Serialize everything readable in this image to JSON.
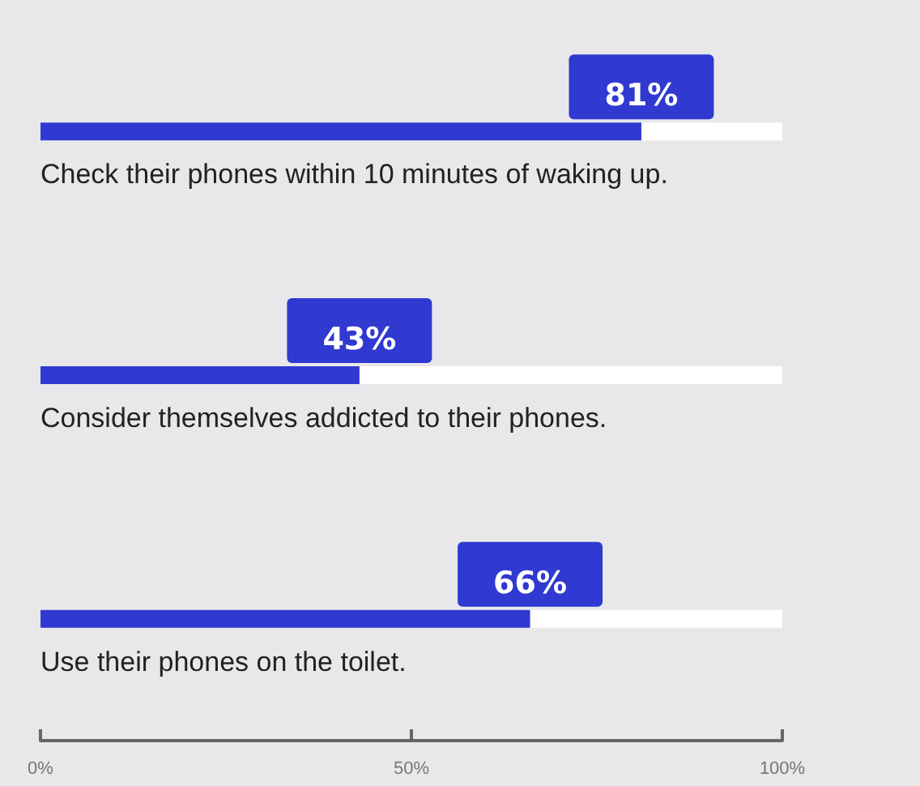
{
  "chart_data": {
    "type": "bar",
    "orientation": "horizontal",
    "categories": [
      "Check their phones within 10 minutes of waking up.",
      "Consider themselves addicted to their phones.",
      "Use their phones on the toilet."
    ],
    "values": [
      81,
      43,
      66
    ],
    "color": "#3039d0",
    "value_labels": [
      "81%",
      "43%",
      "66%"
    ],
    "xlim": [
      0,
      100
    ],
    "xticks": [
      {
        "value": 0,
        "label": "0%"
      },
      {
        "value": 50,
        "label": "50%"
      },
      {
        "value": 100,
        "label": "100%"
      }
    ],
    "grid": false
  }
}
